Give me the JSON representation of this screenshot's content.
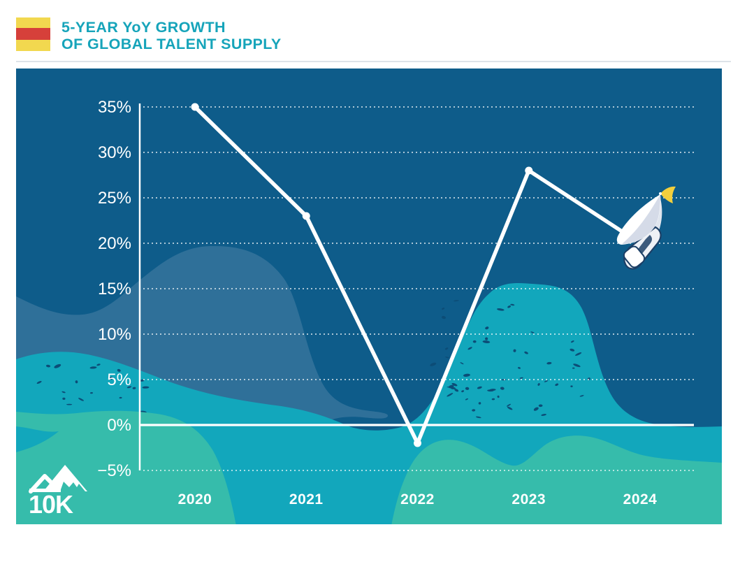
{
  "header": {
    "title_line1": "5-YEAR YoY GROWTH",
    "title_line2": "OF GLOBAL TALENT SUPPLY",
    "title_color": "#16a4ba",
    "flag_yellow": "#f2d84f",
    "flag_red": "#d6403a"
  },
  "chart_data": {
    "type": "line",
    "title": "5-YEAR YoY GROWTH OF GLOBAL TALENT SUPPLY",
    "categories": [
      "2020",
      "2021",
      "2022",
      "2023",
      "2024"
    ],
    "values": [
      35,
      23,
      -2,
      28,
      20
    ],
    "unit": "%",
    "ylabel": "",
    "xlabel": "",
    "ylim": [
      -5,
      35
    ],
    "ytick_values": [
      35,
      30,
      25,
      20,
      15,
      10,
      5,
      0,
      -5
    ],
    "ytick_labels": [
      "35%",
      "30%",
      "25%",
      "20%",
      "15%",
      "10%",
      "5%",
      "0%",
      "−5%"
    ],
    "grid": "dotted horizontal gridlines, solid white zero line",
    "legend": "none",
    "line_color": "#ffffff",
    "marker": "filled white dots",
    "endpoint_decoration": "sailboat with yellow pennant at 2024 value",
    "background_color": "#0e5c8a",
    "wave_colors": {
      "light_blue": "#2f7099",
      "teal": "#12a7bc",
      "green": "#36bcab",
      "speckle": "#0c4d77"
    }
  },
  "logo": {
    "text": "10K",
    "icon": "mountain-peaks",
    "color": "#ffffff"
  }
}
